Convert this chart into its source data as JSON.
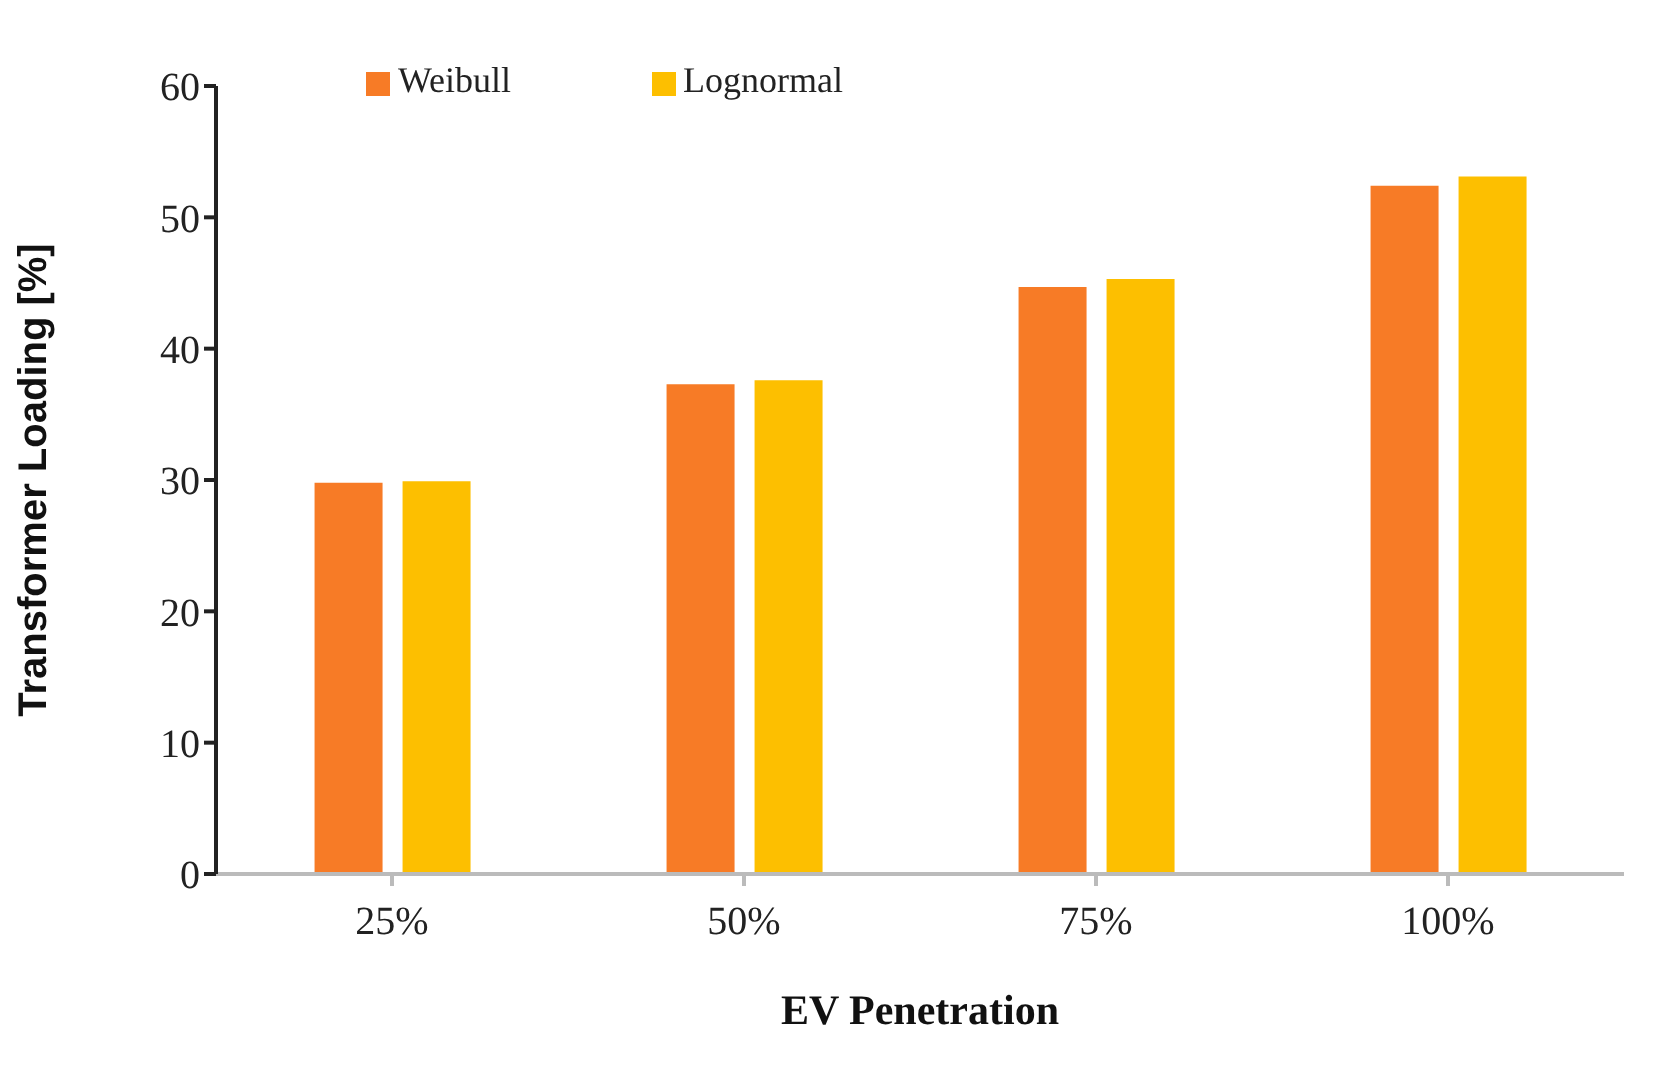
{
  "chart_data": {
    "type": "bar",
    "xlabel": "EV Penetration",
    "ylabel": "Transformer Loading [%]",
    "categories": [
      "25%",
      "50%",
      "75%",
      "100%"
    ],
    "series": [
      {
        "name": "Weibull",
        "color": "#f77b26",
        "values": [
          29.8,
          37.3,
          44.7,
          52.4
        ]
      },
      {
        "name": "Lognormal",
        "color": "#fdbf00",
        "values": [
          29.9,
          37.6,
          45.3,
          53.1
        ]
      }
    ],
    "ylim": [
      0,
      60
    ],
    "yticks": [
      0,
      10,
      20,
      30,
      40,
      50,
      60
    ],
    "grid": false,
    "legend": "top left"
  }
}
